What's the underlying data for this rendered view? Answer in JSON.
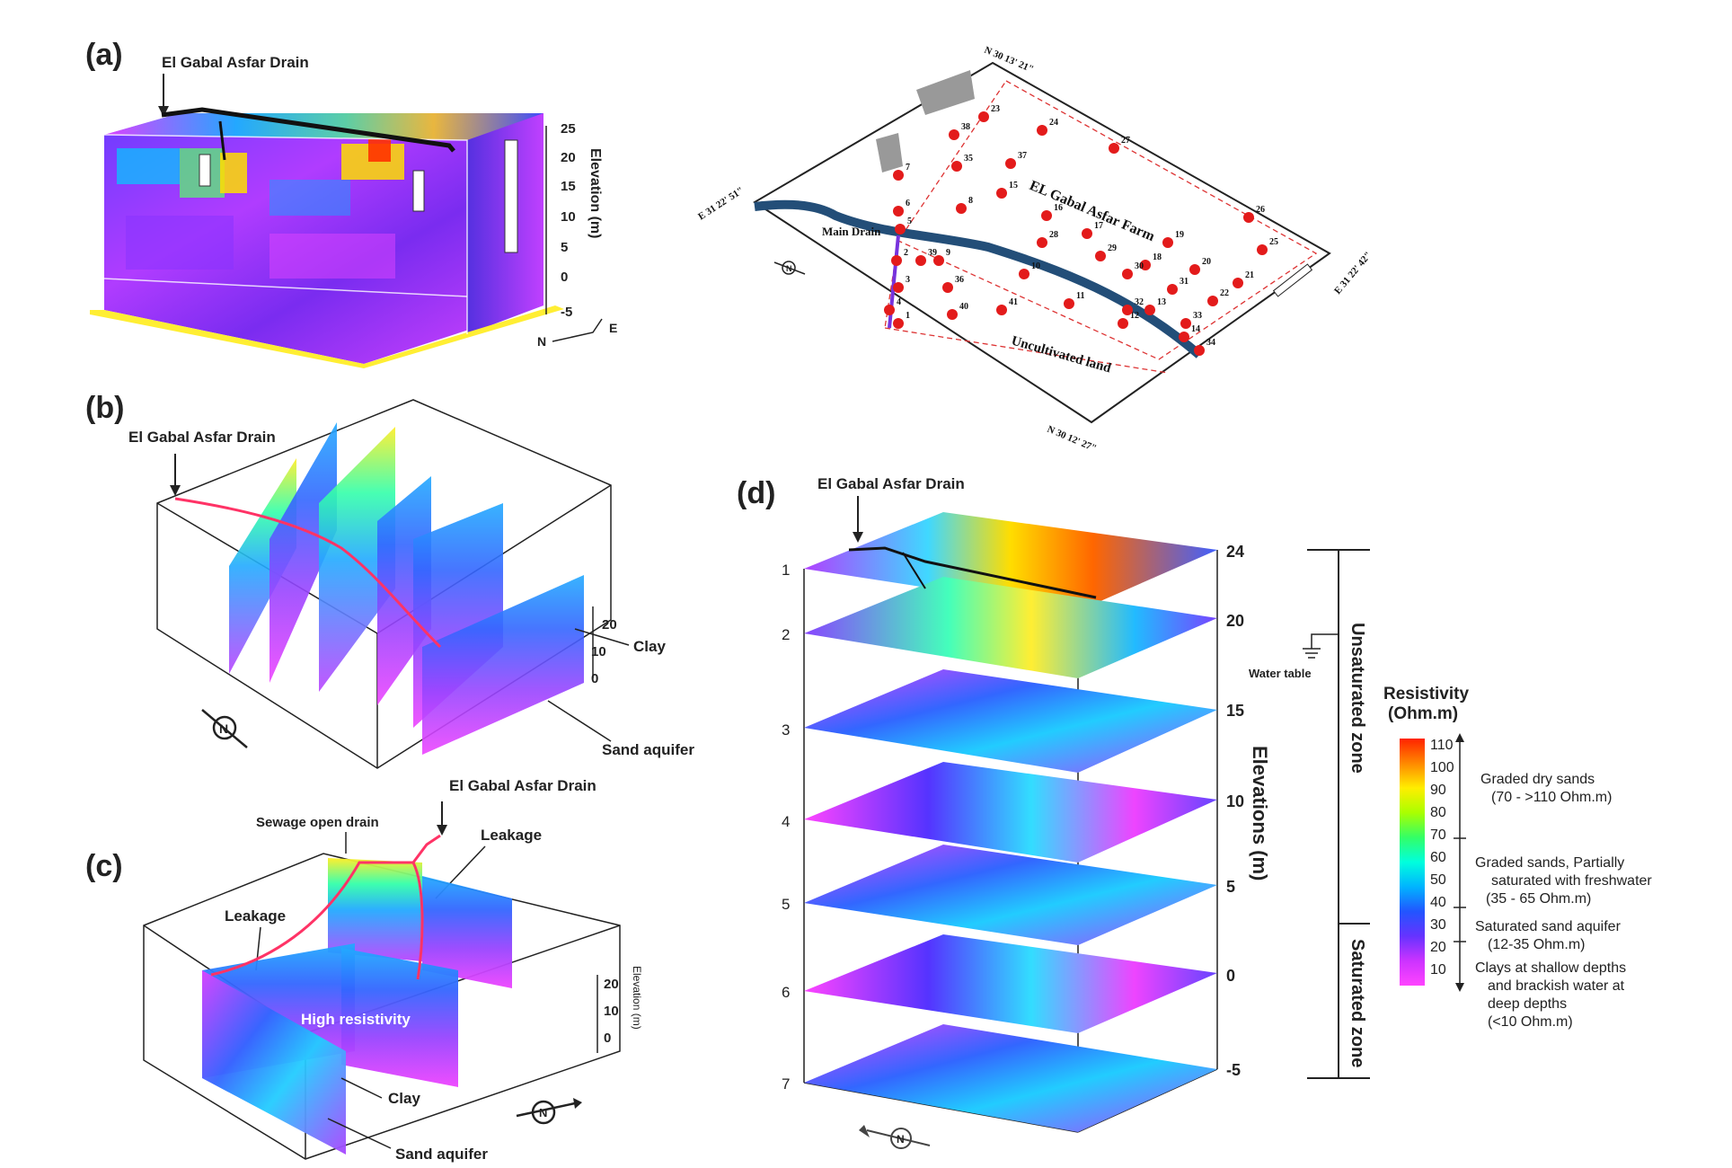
{
  "panels": {
    "a": {
      "label": "(a)",
      "drain_label": "El Gabal Asfar Drain",
      "elev_ticks": [
        "25",
        "20",
        "15",
        "10",
        "5",
        "0",
        "-5"
      ],
      "elev_axis_label": "Elevation (m)",
      "north": "N",
      "east": "E"
    },
    "map": {
      "coord_top": "N 30 13' 21\"",
      "coord_bottom": "N 30 12' 27\"",
      "coord_left": "E 31 22' 51\"",
      "coord_right": "E 31 22' 42\"",
      "farm_label": "EL Gabal Asfar Farm",
      "main_drain": "Main Drain",
      "uncultivated": "Uncultivated land",
      "north": "N",
      "sites": [
        "1",
        "2",
        "3",
        "4",
        "5",
        "6",
        "7",
        "8",
        "9",
        "10",
        "11",
        "12",
        "13",
        "14",
        "15",
        "16",
        "17",
        "18",
        "19",
        "20",
        "21",
        "22",
        "23",
        "24",
        "25",
        "26",
        "27",
        "28",
        "29",
        "30",
        "31",
        "32",
        "33",
        "34",
        "35",
        "36",
        "37",
        "38",
        "39",
        "40",
        "41"
      ]
    },
    "b": {
      "label": "(b)",
      "drain_label": "El Gabal Asfar Drain",
      "elev_ticks": [
        "20",
        "10",
        "0"
      ],
      "clay": "Clay",
      "sand": "Sand aquifer",
      "north": "N"
    },
    "c": {
      "label": "(c)",
      "drain_label": "El Gabal Asfar Drain",
      "sewage_label": "Sewage open drain",
      "leakage1": "Leakage",
      "leakage2": "Leakage",
      "high_res": "High resistivity",
      "clay": "Clay",
      "sand": "Sand aquifer",
      "elev_ticks": [
        "20",
        "10",
        "0"
      ],
      "elev_axis_label": "Elevation (m)",
      "north": "N"
    },
    "d": {
      "label": "(d)",
      "drain_label": "El Gabal Asfar Drain",
      "slice_numbers": [
        "1",
        "2",
        "3",
        "4",
        "5",
        "6",
        "7"
      ],
      "elev_ticks": [
        "24",
        "20",
        "15",
        "10",
        "5",
        "0",
        "-5"
      ],
      "elev_axis_label": "Elevations (m)",
      "water_table": "Water table",
      "unsaturated": "Unsaturated zone",
      "saturated": "Saturated zone",
      "north": "N"
    }
  },
  "legend": {
    "title": "Resistivity",
    "unit": "(Ohm.m)",
    "ticks": [
      "110",
      "100",
      "90",
      "80",
      "70",
      "60",
      "50",
      "40",
      "30",
      "20",
      "10"
    ],
    "stops": [
      "#ff2200",
      "#ff8800",
      "#ffee00",
      "#aaff00",
      "#33ff66",
      "#00ffdd",
      "#00b4ff",
      "#2255ff",
      "#6633ff",
      "#cc33ff",
      "#ff44ff"
    ],
    "classes": [
      {
        "line1": "Graded dry sands",
        "line2": "(70 - >110 Ohm.m)",
        "line3": "",
        "line4": ""
      },
      {
        "line1": "Graded sands, Partially",
        "line2": "saturated with freshwater",
        "line3": "(35 - 65 Ohm.m)",
        "line4": ""
      },
      {
        "line1": "Saturated sand aquifer",
        "line2": "(12-35 Ohm.m)",
        "line3": "",
        "line4": ""
      },
      {
        "line1": "Clays at shallow depths",
        "line2": "and brackish water at",
        "line3": "deep depths",
        "line4": "(<10 Ohm.m)"
      }
    ]
  }
}
